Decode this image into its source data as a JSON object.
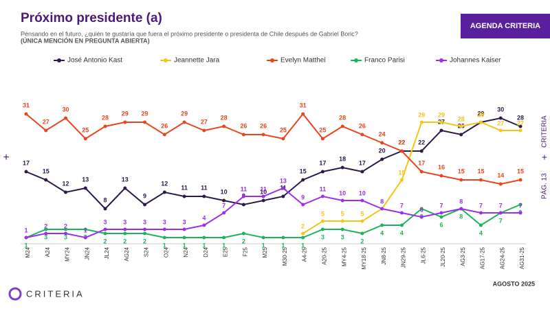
{
  "header": {
    "title": "Próximo presidente (a)",
    "subtitle": "Pensando en el futuro, ¿quién te gustaría que fuera el próximo presidente o presidenta de Chile después de Gabriel Boric?",
    "note": "(ÚNICA MENCIÓN EN PREGUNTA ABIERTA)",
    "button": "AGENDA CRITERIA"
  },
  "side": {
    "page": "PÁG. 13",
    "brand": "CRITERIA"
  },
  "footer": {
    "date": "AGOSTO 2025",
    "logo": "CRITERIA"
  },
  "chart_data": {
    "type": "line",
    "categories": [
      "M24",
      "A24",
      "MY24",
      "JN24",
      "JL24",
      "AG24",
      "S24",
      "O24",
      "N24",
      "D24",
      "E25",
      "F25",
      "M25",
      "M30-25",
      "A4-25",
      "A20-25",
      "MY4-25",
      "MY18-25",
      "JN8-25",
      "JN29-25",
      "JL6-25",
      "JL20-25",
      "AG3-25",
      "AG17-25",
      "AG24-25",
      "AG31-25"
    ],
    "ylim": [
      0,
      32
    ],
    "series": [
      {
        "name": "José Antonio Kast",
        "color": "#2d1a4a",
        "values": [
          17,
          15,
          12,
          13,
          8,
          13,
          9,
          12,
          11,
          11,
          10,
          9,
          10,
          11,
          15,
          17,
          18,
          17,
          20,
          22,
          22,
          27,
          26,
          29,
          30,
          28
        ]
      },
      {
        "name": "Jeannette Jara",
        "color": "#f5c518",
        "values": [
          null,
          null,
          null,
          null,
          null,
          null,
          null,
          null,
          null,
          null,
          null,
          null,
          null,
          null,
          2,
          5,
          5,
          5,
          8,
          15,
          29,
          29,
          28,
          29,
          27,
          27
        ]
      },
      {
        "name": "Evelyn Matthei",
        "color": "#e8461e",
        "values": [
          31,
          27,
          30,
          25,
          28,
          29,
          29,
          26,
          29,
          27,
          28,
          26,
          26,
          25,
          31,
          25,
          28,
          26,
          24,
          22,
          17,
          16,
          15,
          15,
          14,
          15
        ]
      },
      {
        "name": "Franco Parisi",
        "color": "#1db35a",
        "values": [
          1,
          3,
          3,
          3,
          2,
          2,
          2,
          1,
          1,
          1,
          1,
          2,
          1,
          1,
          1,
          3,
          3,
          2,
          4,
          4,
          8,
          6,
          8,
          4,
          7,
          9
        ]
      },
      {
        "name": "Johannes Kaiser",
        "color": "#9b30e6",
        "values": [
          1,
          2,
          2,
          1,
          3,
          3,
          3,
          3,
          3,
          4,
          7,
          11,
          11,
          13,
          9,
          11,
          10,
          10,
          8,
          7,
          6,
          7,
          8,
          7,
          7,
          7
        ]
      }
    ]
  }
}
